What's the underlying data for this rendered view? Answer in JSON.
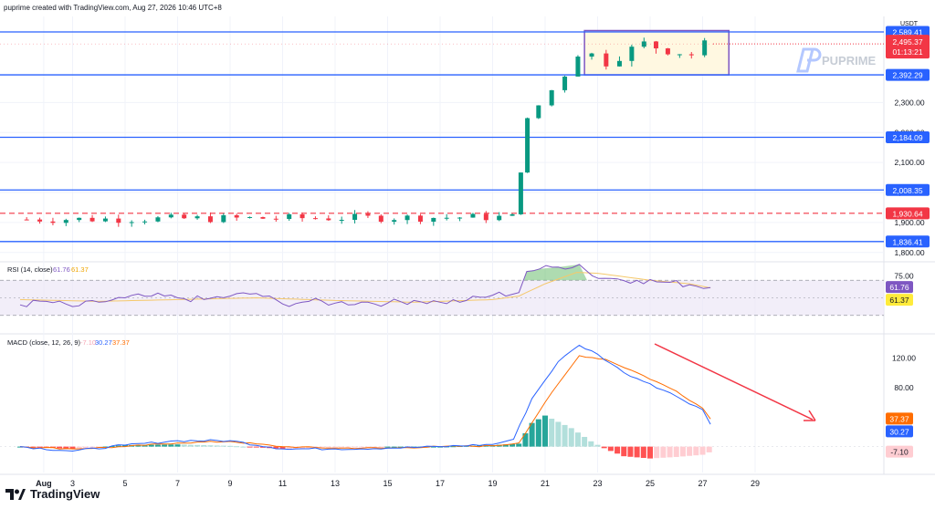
{
  "header": {
    "attribution": "puprime created with TradingView.com, Aug 27, 2026 10:46 UTC+8"
  },
  "footer": {
    "brand": "TradingView"
  },
  "watermark": {
    "text": "PUPRIME"
  },
  "colors": {
    "up": "#089981",
    "down": "#F23645",
    "level": "#2962FF",
    "box": "#7E57C2",
    "box_fill": "#FFF8E1",
    "rsi": "#7E57C2",
    "rsi_ma": "#F5C86B",
    "macd": "#2962FF",
    "signal": "#FF6D00",
    "arrow": "#F23645",
    "current": "#F23645"
  },
  "chart_data": [
    {
      "type": "candlestick",
      "currency": "USDT",
      "ylim": [
        1775,
        2575
      ],
      "x_tick_labels": [
        "Aug",
        "3",
        "5",
        "7",
        "9",
        "11",
        "13",
        "15",
        "17",
        "19",
        "21",
        "23",
        "25",
        "27",
        "29"
      ],
      "y_tick_labels": [
        1800,
        1900,
        2000,
        2100,
        2200,
        2300
      ],
      "horizontal_levels": [
        2589.41,
        2392.29,
        2184.09,
        2008.35,
        1836.41
      ],
      "level_labels": [
        "2,589.41",
        "2,392.29",
        "2,184.09",
        "2,008.35",
        "1,836.41"
      ],
      "dashed_level": {
        "value": 1930.64,
        "label": "1,930.64"
      },
      "current_price": {
        "value": 2495.37,
        "label": "2,495.37",
        "countdown": "01:13:21"
      },
      "consolidation_box": {
        "price_top": 2540,
        "price_bottom": 2392.29,
        "start_day": 22.5,
        "end_day": 28.0
      },
      "segments": [
        {
          "from_day": 1.0,
          "to_day": 20.0,
          "start": 1910,
          "end": 1918,
          "hi": 1942,
          "lo": 1838,
          "vol": 14
        },
        {
          "from_day": 20.0,
          "to_day": 20.15,
          "start": 1918,
          "end": 2070,
          "hi": 2075,
          "lo": 1915,
          "vol": 4
        },
        {
          "from_day": 20.15,
          "to_day": 20.5,
          "start": 2070,
          "end": 2240,
          "hi": 2250,
          "lo": 2060,
          "vol": 12
        },
        {
          "from_day": 20.5,
          "to_day": 22.0,
          "start": 2240,
          "end": 2392,
          "hi": 2400,
          "lo": 2230,
          "vol": 10
        },
        {
          "from_day": 22.0,
          "to_day": 22.5,
          "start": 2392,
          "end": 2475,
          "hi": 2542,
          "lo": 2405,
          "vol": 30
        },
        {
          "from_day": 22.5,
          "to_day": 23.6,
          "start": 2475,
          "end": 2440,
          "hi": 2520,
          "lo": 2395,
          "vol": 25
        },
        {
          "from_day": 23.6,
          "to_day": 25.0,
          "start": 2440,
          "end": 2495,
          "hi": 2540,
          "lo": 2420,
          "vol": 20
        },
        {
          "from_day": 25.0,
          "to_day": 26.8,
          "start": 2495,
          "end": 2460,
          "hi": 2520,
          "lo": 2430,
          "vol": 20
        },
        {
          "from_day": 26.8,
          "to_day": 27.35,
          "start": 2460,
          "end": 2495,
          "hi": 2530,
          "lo": 2450,
          "vol": 15
        }
      ]
    },
    {
      "type": "line",
      "title": "RSI (14, close)",
      "values_label": [
        "61.76",
        "61.37"
      ],
      "ylim": [
        10,
        90
      ],
      "y_tick_labels": [
        75
      ],
      "band": [
        30,
        70
      ],
      "series": [
        {
          "name": "RSI",
          "points": [
            [
              1,
              42
            ],
            [
              2,
              46
            ],
            [
              3,
              40
            ],
            [
              4,
              45
            ],
            [
              5,
              50
            ],
            [
              6,
              52
            ],
            [
              7,
              50
            ],
            [
              8,
              48
            ],
            [
              9,
              52
            ],
            [
              10,
              55
            ],
            [
              11,
              43
            ],
            [
              12,
              46
            ],
            [
              13,
              44
            ],
            [
              14,
              45
            ],
            [
              15,
              44
            ],
            [
              16,
              47
            ],
            [
              17,
              45
            ],
            [
              18,
              47
            ],
            [
              19,
              53
            ],
            [
              20,
              56
            ],
            [
              20.3,
              80
            ],
            [
              20.8,
              83
            ],
            [
              21.5,
              85
            ],
            [
              22.3,
              88
            ],
            [
              22.8,
              75
            ],
            [
              23.5,
              72
            ],
            [
              24.5,
              70
            ],
            [
              25.5,
              68
            ],
            [
              26.5,
              65
            ],
            [
              27.3,
              61.76
            ]
          ]
        },
        {
          "name": "RSI-based MA",
          "points": [
            [
              1,
              48
            ],
            [
              4,
              46
            ],
            [
              7,
              48
            ],
            [
              10,
              50
            ],
            [
              13,
              47
            ],
            [
              16,
              45
            ],
            [
              19,
              48
            ],
            [
              20,
              52
            ],
            [
              21,
              66
            ],
            [
              22.2,
              79
            ],
            [
              23,
              78
            ],
            [
              24,
              74
            ],
            [
              25,
              70
            ],
            [
              26.5,
              66
            ],
            [
              27.3,
              61.37
            ]
          ]
        }
      ]
    },
    {
      "type": "macd",
      "title": "MACD (close, 12, 26, 9)",
      "values_label": [
        "-7.10",
        "30.27",
        "37.37"
      ],
      "ylim": [
        -35,
        150
      ],
      "y_tick_labels": [
        120,
        80
      ],
      "series": [
        {
          "name": "MACD",
          "points": [
            [
              1,
              0
            ],
            [
              3,
              -6
            ],
            [
              5,
              2
            ],
            [
              7,
              8
            ],
            [
              9,
              8
            ],
            [
              11,
              -3
            ],
            [
              13,
              -3
            ],
            [
              15,
              -2
            ],
            [
              17,
              0
            ],
            [
              19,
              3
            ],
            [
              19.8,
              10
            ],
            [
              20.5,
              65
            ],
            [
              21.5,
              115
            ],
            [
              22.3,
              137
            ],
            [
              23,
              125
            ],
            [
              24,
              100
            ],
            [
              25,
              85
            ],
            [
              26,
              68
            ],
            [
              27,
              50
            ],
            [
              27.3,
              30.27
            ]
          ]
        },
        {
          "name": "Signal",
          "points": [
            [
              1,
              0
            ],
            [
              3,
              -3
            ],
            [
              5,
              0
            ],
            [
              7,
              5
            ],
            [
              9,
              7
            ],
            [
              11,
              0
            ],
            [
              13,
              -2
            ],
            [
              15,
              -2
            ],
            [
              17,
              0
            ],
            [
              19,
              1
            ],
            [
              20,
              5
            ],
            [
              21,
              60
            ],
            [
              22.3,
              123
            ],
            [
              23.3,
              118
            ],
            [
              24.5,
              100
            ],
            [
              26,
              75
            ],
            [
              27,
              52
            ],
            [
              27.3,
              37.37
            ]
          ]
        },
        {
          "name": "Histogram",
          "points": [
            [
              1,
              0
            ],
            [
              3,
              -3
            ],
            [
              5,
              2
            ],
            [
              7,
              3
            ],
            [
              9,
              1
            ],
            [
              11,
              -3
            ],
            [
              13,
              -1
            ],
            [
              15,
              0
            ],
            [
              17,
              0
            ],
            [
              19,
              2
            ],
            [
              20,
              4
            ],
            [
              20.5,
              32
            ],
            [
              21,
              42
            ],
            [
              22,
              25
            ],
            [
              22.8,
              6
            ],
            [
              23.3,
              -3
            ],
            [
              24,
              -13
            ],
            [
              25,
              -16
            ],
            [
              26,
              -14
            ],
            [
              27,
              -11
            ],
            [
              27.3,
              -7.1
            ]
          ]
        }
      ]
    }
  ]
}
